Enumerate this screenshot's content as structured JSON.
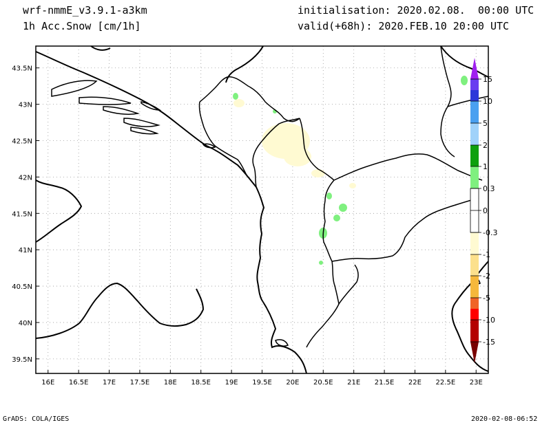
{
  "header": {
    "model": "wrf-nmmE_v3.9.1-a3km",
    "field": "1h Acc.Snow [cm/1h]",
    "init_label": "initialisation:",
    "init_value": "2020.02.08.  00:00 UTC",
    "valid_label": "valid(+68h):",
    "valid_value": "2020.FEB.10 20:00 UTC"
  },
  "map": {
    "lon_range": [
      15.8,
      23.2
    ],
    "lat_range": [
      39.3,
      43.8
    ],
    "lon_ticks": [
      "16E",
      "16.5E",
      "17E",
      "17.5E",
      "18E",
      "18.5E",
      "19E",
      "19.5E",
      "20E",
      "20.5E",
      "21E",
      "21.5E",
      "22E",
      "22.5E",
      "23E"
    ],
    "lat_ticks": [
      "39.5N",
      "40N",
      "40.5N",
      "41N",
      "41.5N",
      "42N",
      "42.5N",
      "43N",
      "43.5N"
    ]
  },
  "legend": {
    "labels": [
      "15",
      "10",
      "5",
      "2",
      "1",
      "0.3",
      "0",
      "-0.3",
      "-1",
      "-2",
      "-5",
      "-10",
      "-15"
    ],
    "colors": {
      "top_tip": "#a020f0",
      "c15": "#6a3df0",
      "c10": "#2c38d9",
      "c5": "#4aa0f0",
      "c2": "#a0d2fa",
      "c1": "#0ea00e",
      "c03": "#7ff07f",
      "c0p": "#ffffff",
      "c0n": "#ffffff",
      "cm03": "#fffad2",
      "cm1": "#fce08c",
      "cm2": "#f5b83c",
      "cm5": "#f06428",
      "cm10": "#ff0000",
      "cm15": "#b40000",
      "bot_tip": "#780000"
    }
  },
  "footer": {
    "left": "GrADS: COLA/IGES",
    "right": "2020-02-08-06:52"
  }
}
